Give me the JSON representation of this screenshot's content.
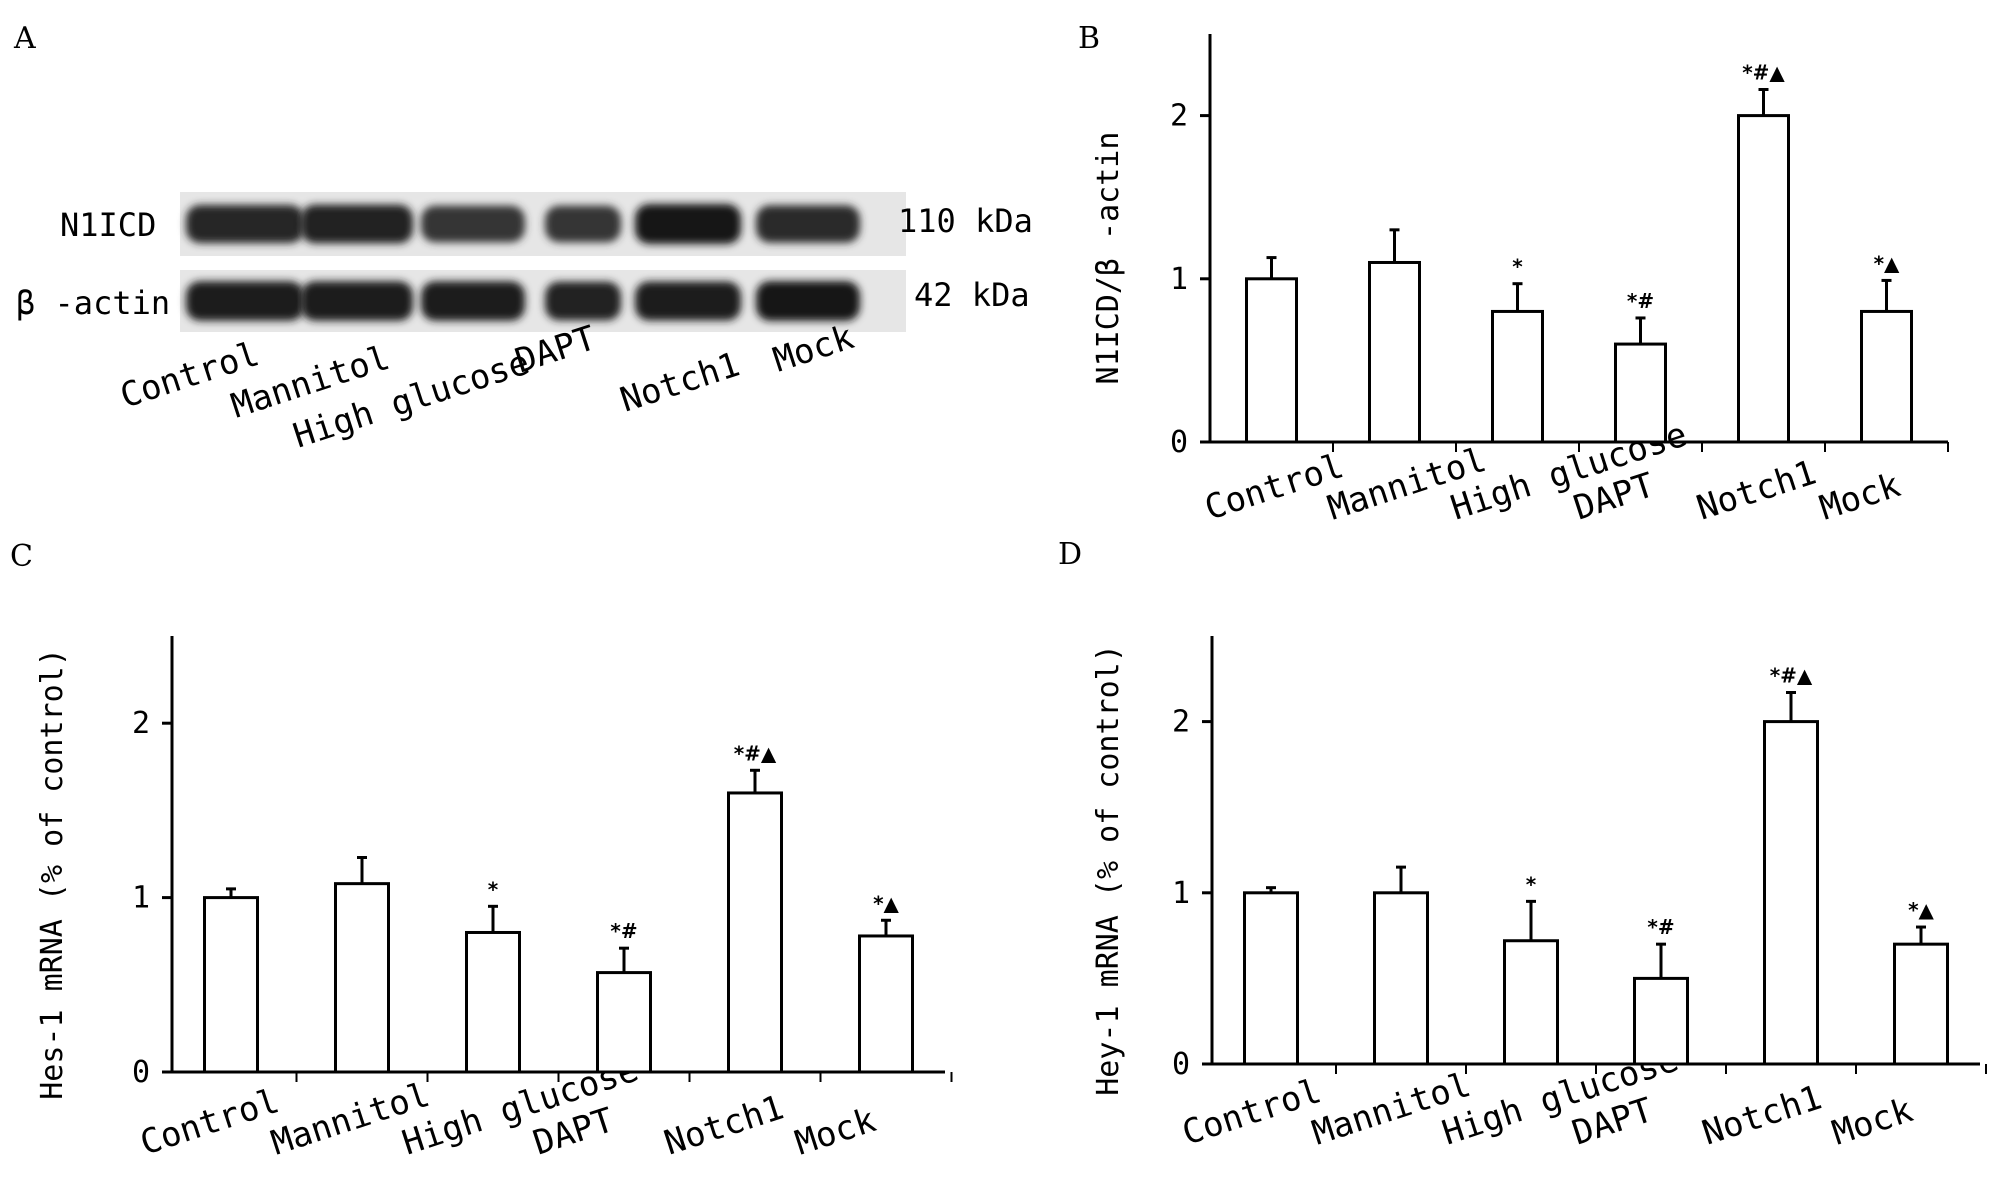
{
  "chart_data": [
    {
      "panel": "A",
      "type": "other",
      "bands": [
        {
          "label": "N1ICD",
          "size": "110 kDa",
          "intensities": [
            0.85,
            0.9,
            0.72,
            0.72,
            1.0,
            0.8
          ]
        },
        {
          "label": "β -actin",
          "size": "42 kDa",
          "intensities": [
            0.95,
            0.95,
            0.95,
            0.9,
            0.92,
            0.98
          ]
        }
      ],
      "categories": [
        "Control",
        "Mannitol",
        "High glucose",
        "DAPT",
        "Notch1",
        "Mock"
      ]
    },
    {
      "panel": "B",
      "type": "bar",
      "categories": [
        "Control",
        "Mannitol",
        "High glucose",
        "DAPT",
        "Notch1",
        "Mock"
      ],
      "values": [
        1.0,
        1.1,
        0.8,
        0.6,
        2.0,
        0.8
      ],
      "errors": [
        0.13,
        0.2,
        0.17,
        0.16,
        0.16,
        0.19
      ],
      "annotations": [
        "",
        "",
        "*",
        "*#",
        "*#▲",
        "*▲"
      ],
      "ylabel": "N1ICD/β -actin",
      "ylim": [
        0,
        2.5
      ],
      "yticks": [
        0,
        1,
        2
      ],
      "grid": false
    },
    {
      "panel": "C",
      "type": "bar",
      "categories": [
        "Control",
        "Mannitol",
        "High glucose",
        "DAPT",
        "Notch1",
        "Mock"
      ],
      "values": [
        1.0,
        1.08,
        0.8,
        0.57,
        1.6,
        0.78
      ],
      "errors": [
        0.05,
        0.15,
        0.15,
        0.14,
        0.13,
        0.09
      ],
      "annotations": [
        "",
        "",
        "*",
        "*#",
        "*#▲",
        "*▲"
      ],
      "ylabel": "Hes-1 mRNA (% of control)",
      "ylim": [
        0,
        2.5
      ],
      "yticks": [
        0,
        1,
        2
      ],
      "grid": false
    },
    {
      "panel": "D",
      "type": "bar",
      "categories": [
        "Control",
        "Mannitol",
        "High glucose",
        "DAPT",
        "Notch1",
        "Mock"
      ],
      "values": [
        1.0,
        1.0,
        0.72,
        0.5,
        2.0,
        0.7
      ],
      "errors": [
        0.03,
        0.15,
        0.23,
        0.2,
        0.17,
        0.1
      ],
      "annotations": [
        "",
        "",
        "*",
        "*#",
        "*#▲",
        "*▲"
      ],
      "ylabel": "Hey-1 mRNA (% of control)",
      "ylim": [
        0,
        2.5
      ],
      "yticks": [
        0,
        1,
        2
      ],
      "grid": false
    }
  ]
}
